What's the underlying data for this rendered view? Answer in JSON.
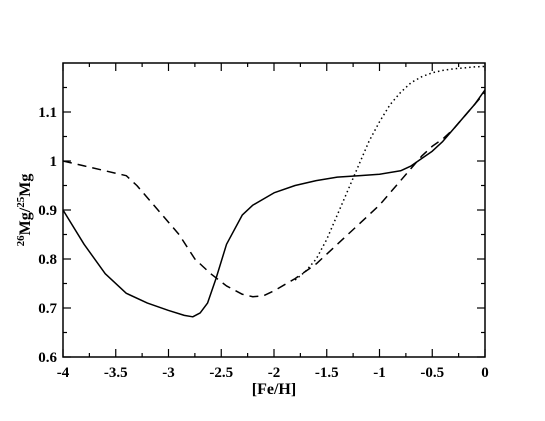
{
  "chart_data": {
    "type": "line",
    "title": "",
    "xlabel": "[Fe/H]",
    "ylabel": {
      "sup1": "26",
      "base1": "Mg/",
      "sup2": "25",
      "base2": "Mg"
    },
    "xlim": [
      -4,
      0
    ],
    "ylim": [
      0.6,
      1.2
    ],
    "grid": false,
    "legend": "none",
    "x_ticks": [
      {
        "value": -4,
        "label": "-4"
      },
      {
        "value": -3.5,
        "label": "-3.5"
      },
      {
        "value": -3,
        "label": "-3"
      },
      {
        "value": -2.5,
        "label": "-2.5"
      },
      {
        "value": -2,
        "label": "-2"
      },
      {
        "value": -1.5,
        "label": "-1.5"
      },
      {
        "value": -1,
        "label": "-1"
      },
      {
        "value": -0.5,
        "label": "-0.5"
      },
      {
        "value": 0,
        "label": "0"
      }
    ],
    "y_ticks": [
      {
        "value": 0.6,
        "label": "0.6"
      },
      {
        "value": 0.7,
        "label": "0.7"
      },
      {
        "value": 0.8,
        "label": "0.8"
      },
      {
        "value": 0.9,
        "label": "0.9"
      },
      {
        "value": 1.0,
        "label": "1"
      },
      {
        "value": 1.1,
        "label": "1.1"
      }
    ],
    "series": [
      {
        "style": "solid",
        "color": "#000000",
        "points": [
          [
            -4.0,
            0.9
          ],
          [
            -3.8,
            0.83
          ],
          [
            -3.6,
            0.77
          ],
          [
            -3.4,
            0.73
          ],
          [
            -3.2,
            0.71
          ],
          [
            -3.0,
            0.695
          ],
          [
            -2.85,
            0.685
          ],
          [
            -2.77,
            0.682
          ],
          [
            -2.7,
            0.69
          ],
          [
            -2.63,
            0.71
          ],
          [
            -2.55,
            0.76
          ],
          [
            -2.45,
            0.83
          ],
          [
            -2.3,
            0.89
          ],
          [
            -2.2,
            0.91
          ],
          [
            -2.0,
            0.935
          ],
          [
            -1.8,
            0.95
          ],
          [
            -1.6,
            0.96
          ],
          [
            -1.4,
            0.967
          ],
          [
            -1.2,
            0.97
          ],
          [
            -1.0,
            0.973
          ],
          [
            -0.8,
            0.98
          ],
          [
            -0.7,
            0.99
          ],
          [
            -0.6,
            1.005
          ],
          [
            -0.5,
            1.02
          ],
          [
            -0.4,
            1.04
          ],
          [
            -0.3,
            1.065
          ],
          [
            -0.2,
            1.09
          ],
          [
            -0.1,
            1.115
          ],
          [
            0.0,
            1.145
          ]
        ]
      },
      {
        "style": "dashed",
        "color": "#000000",
        "points": [
          [
            -4.0,
            1.0
          ],
          [
            -3.8,
            0.99
          ],
          [
            -3.6,
            0.98
          ],
          [
            -3.4,
            0.97
          ],
          [
            -3.3,
            0.95
          ],
          [
            -3.1,
            0.9
          ],
          [
            -2.9,
            0.85
          ],
          [
            -2.75,
            0.8
          ],
          [
            -2.6,
            0.77
          ],
          [
            -2.45,
            0.745
          ],
          [
            -2.3,
            0.728
          ],
          [
            -2.2,
            0.723
          ],
          [
            -2.1,
            0.725
          ],
          [
            -2.0,
            0.735
          ],
          [
            -1.8,
            0.76
          ],
          [
            -1.6,
            0.79
          ],
          [
            -1.4,
            0.83
          ],
          [
            -1.2,
            0.87
          ],
          [
            -1.0,
            0.91
          ],
          [
            -0.8,
            0.96
          ],
          [
            -0.7,
            0.985
          ],
          [
            -0.6,
            1.01
          ],
          [
            -0.5,
            1.03
          ],
          [
            -0.4,
            1.045
          ],
          [
            -0.3,
            1.065
          ],
          [
            -0.2,
            1.09
          ],
          [
            -0.1,
            1.115
          ],
          [
            0.0,
            1.14
          ]
        ]
      },
      {
        "style": "dotted",
        "color": "#000000",
        "points": [
          [
            -1.8,
            0.757
          ],
          [
            -1.7,
            0.775
          ],
          [
            -1.6,
            0.8
          ],
          [
            -1.5,
            0.84
          ],
          [
            -1.4,
            0.89
          ],
          [
            -1.3,
            0.94
          ],
          [
            -1.2,
            0.99
          ],
          [
            -1.1,
            1.04
          ],
          [
            -1.0,
            1.08
          ],
          [
            -0.9,
            1.115
          ],
          [
            -0.8,
            1.14
          ],
          [
            -0.7,
            1.16
          ],
          [
            -0.6,
            1.172
          ],
          [
            -0.5,
            1.18
          ],
          [
            -0.4,
            1.185
          ],
          [
            -0.3,
            1.188
          ],
          [
            -0.2,
            1.19
          ],
          [
            -0.1,
            1.192
          ],
          [
            0.0,
            1.193
          ]
        ]
      }
    ]
  }
}
